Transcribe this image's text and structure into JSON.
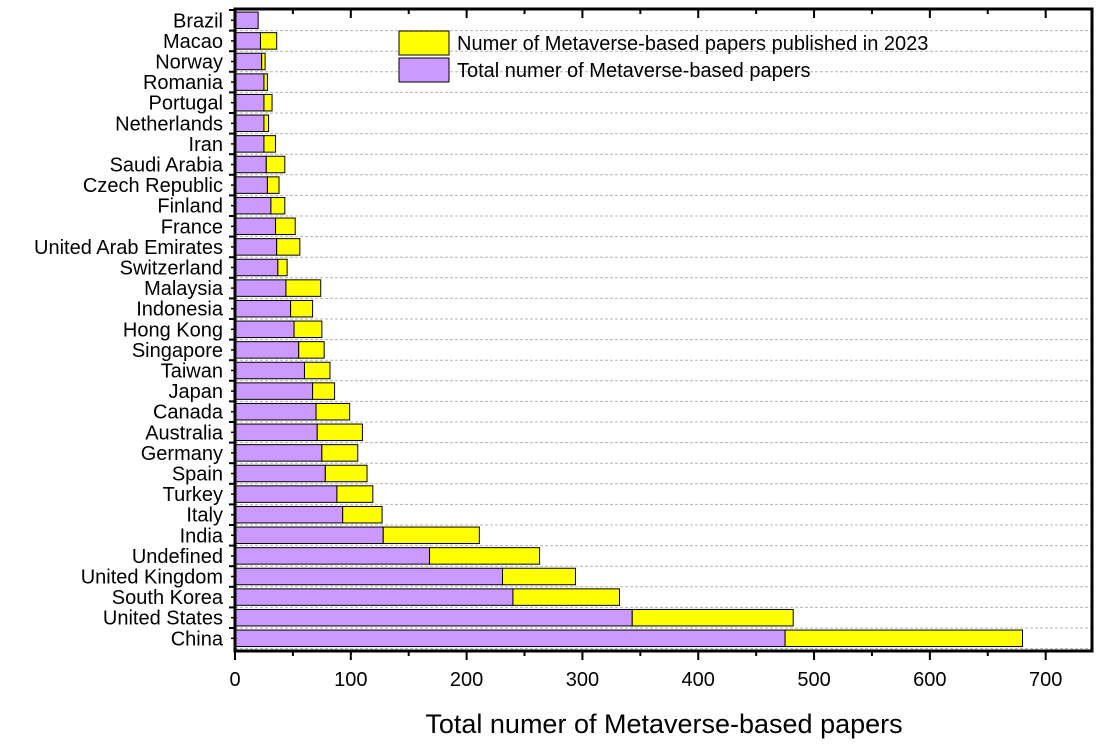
{
  "chart_data": {
    "type": "bar",
    "orientation": "horizontal",
    "stacked": true,
    "categories": [
      "Brazil",
      "Macao",
      "Norway",
      "Romania",
      "Portugal",
      "Netherlands",
      "Iran",
      "Saudi Arabia",
      "Czech Republic",
      "Finland",
      "France",
      "United Arab Emirates",
      "Switzerland",
      "Malaysia",
      "Indonesia",
      "Hong Kong",
      "Singapore",
      "Taiwan",
      "Japan",
      "Canada",
      "Australia",
      "Germany",
      "Spain",
      "Turkey",
      "Italy",
      "India",
      "Undefined",
      "United Kingdom",
      "South Korea",
      "United States",
      "China"
    ],
    "series": [
      {
        "name": "Total numer of Metaverse-based papers",
        "color": "#cc99ff",
        "values": [
          20,
          22,
          23,
          25,
          25,
          25,
          25,
          27,
          28,
          31,
          35,
          36,
          37,
          44,
          48,
          51,
          55,
          60,
          67,
          70,
          71,
          75,
          78,
          88,
          93,
          128,
          168,
          231,
          240,
          343,
          475
        ]
      },
      {
        "name": "Numer of Metaverse-based papers published in 2023",
        "color": "#ffff00",
        "values": [
          0,
          14,
          3,
          3,
          7,
          4,
          10,
          16,
          10,
          12,
          17,
          20,
          8,
          30,
          19,
          24,
          22,
          22,
          19,
          29,
          39,
          31,
          36,
          31,
          34,
          83,
          95,
          63,
          92,
          139,
          205
        ]
      }
    ],
    "xlabel": "Total numer of Metaverse-based papers",
    "ylabel": "",
    "xlim": [
      0,
      740
    ],
    "xticks": [
      0,
      100,
      200,
      300,
      400,
      500,
      600,
      700
    ],
    "grid": "horizontal-dashed",
    "legend_position": "top-right"
  }
}
